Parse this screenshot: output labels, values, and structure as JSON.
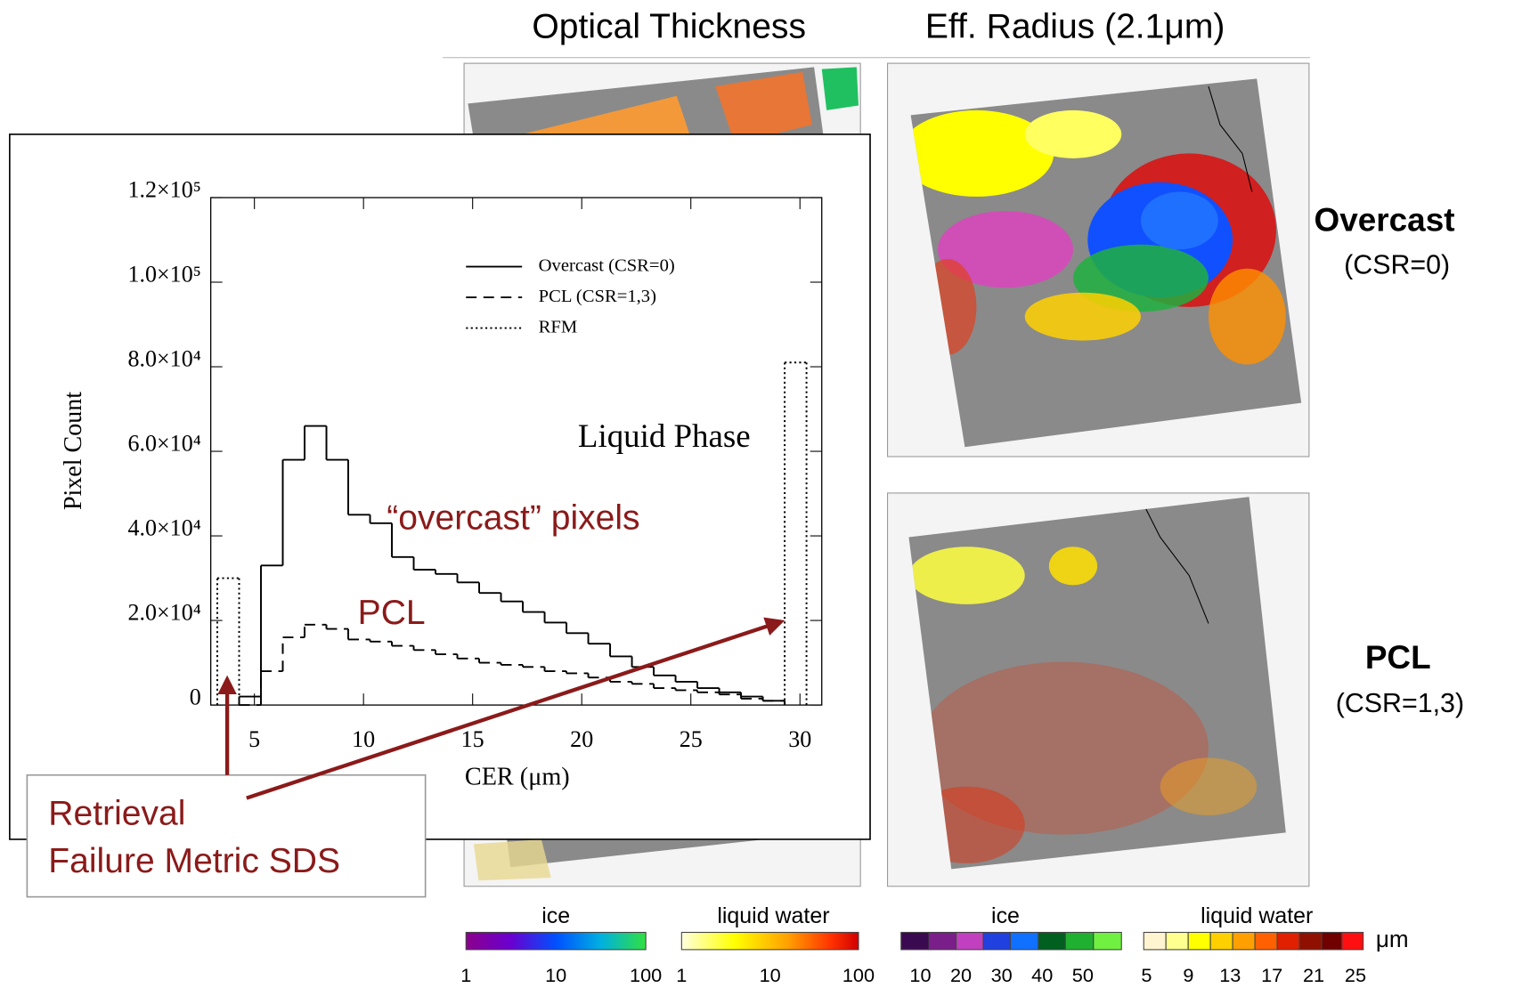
{
  "chart_data": {
    "type": "step-histogram",
    "xlabel": "CER (μm)",
    "ylabel": "Pixel Count",
    "annotation": "Liquid Phase",
    "xlim": [
      3,
      31
    ],
    "ylim": [
      0,
      120000
    ],
    "xticks": [
      5,
      10,
      15,
      20,
      25,
      30
    ],
    "yticks": [
      0,
      {
        "value": 20000,
        "label": "2.0×10⁴"
      },
      {
        "value": 40000,
        "label": "4.0×10⁴"
      },
      {
        "value": 60000,
        "label": "6.0×10⁴"
      },
      {
        "value": 80000,
        "label": "8.0×10⁴"
      },
      {
        "value": 100000,
        "label": "1.0×10⁵"
      },
      {
        "value": 120000,
        "label": "1.2×10⁵"
      }
    ],
    "legend": "upper right",
    "series": [
      {
        "name": "Overcast (CSR=0)",
        "style": "solid",
        "color": "#000000",
        "bins": [
          4.3,
          5.3,
          6.3,
          7.3,
          8.3,
          9.3,
          10.3,
          11.3,
          12.3,
          13.3,
          14.3,
          15.3,
          16.3,
          17.3,
          18.3,
          19.3,
          20.3,
          21.3,
          22.3,
          23.3,
          24.3,
          25.3,
          26.3,
          27.3,
          28.3,
          29.3
        ],
        "values": [
          2000,
          33000,
          58000,
          66000,
          58000,
          45000,
          43000,
          35000,
          32000,
          31000,
          29000,
          26500,
          24500,
          22000,
          19500,
          17000,
          14500,
          11500,
          9000,
          7000,
          5500,
          4000,
          3000,
          2000,
          1000
        ]
      },
      {
        "name": "PCL (CSR=1,3)",
        "style": "dashed",
        "color": "#000000",
        "bins": [
          4.3,
          5.3,
          6.3,
          7.3,
          8.3,
          9.3,
          10.3,
          11.3,
          12.3,
          13.3,
          14.3,
          15.3,
          16.3,
          17.3,
          18.3,
          19.3,
          20.3,
          21.3,
          22.3,
          23.3,
          24.3,
          25.3,
          26.3,
          27.3,
          28.3,
          29.3
        ],
        "values": [
          0,
          8000,
          16000,
          19000,
          18000,
          15500,
          15000,
          14000,
          13000,
          12000,
          11000,
          10000,
          9500,
          9000,
          8000,
          7500,
          6500,
          5500,
          5000,
          4000,
          3500,
          3000,
          2500,
          1500,
          1000
        ]
      },
      {
        "name": "RFM",
        "style": "dotted",
        "color": "#000000",
        "bins": [
          3.3,
          4.3,
          29.3,
          30.3
        ],
        "values": [
          30000,
          null,
          81000
        ]
      }
    ]
  },
  "callouts": {
    "overcast": "“overcast” pixels",
    "pcl": "PCL",
    "retrieval": [
      "Retrieval",
      "Failure Metric SDS"
    ]
  },
  "panels": {
    "columns": [
      "Optical Thickness",
      "Eff. Radius (2.1μm)"
    ],
    "rows": [
      {
        "label": "Overcast",
        "sub": "(CSR=0)"
      },
      {
        "label": "PCL",
        "sub": "(CSR=1,3)"
      }
    ]
  },
  "colorbars": [
    {
      "label": "ice",
      "ticks": [
        1,
        10,
        100
      ]
    },
    {
      "label": "liquid water",
      "ticks": [
        1,
        10,
        100
      ]
    },
    {
      "label": "ice",
      "ticks": [
        10,
        20,
        30,
        40,
        50
      ]
    },
    {
      "label": "liquid water",
      "ticks": [
        5,
        9,
        13,
        17,
        21,
        25
      ]
    }
  ],
  "units": "μm"
}
